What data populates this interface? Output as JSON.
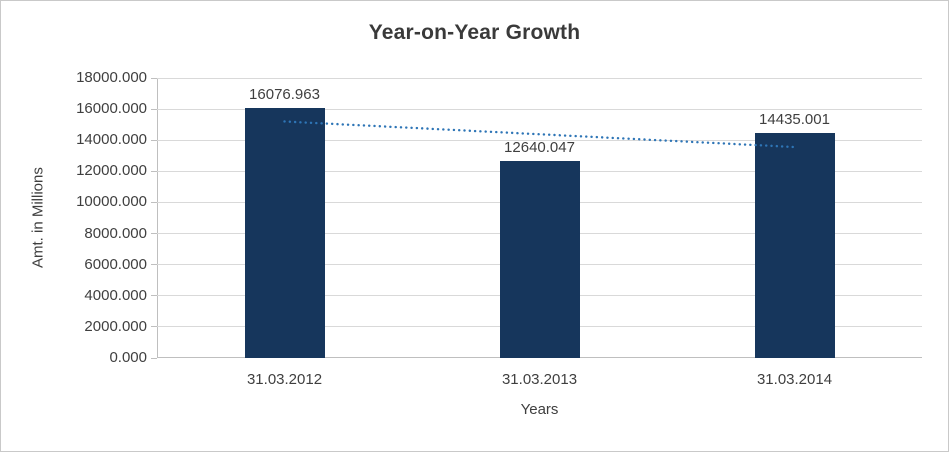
{
  "chart_data": {
    "type": "bar",
    "title": "Year-on-Year Growth",
    "xlabel": "Years",
    "ylabel": "Amt. in Millions",
    "categories": [
      "31.03.2012",
      "31.03.2013",
      "31.03.2014"
    ],
    "values": [
      16076.963,
      12640.047,
      14435.001
    ],
    "data_labels": [
      "16076.963",
      "12640.047",
      "14435.001"
    ],
    "ylim": [
      0,
      18000
    ],
    "y_tick_step": 2000,
    "y_tick_labels": [
      "0.000",
      "2000.000",
      "4000.000",
      "6000.000",
      "8000.000",
      "10000.000",
      "12000.000",
      "14000.000",
      "16000.000",
      "18000.000"
    ],
    "grid": true,
    "legend": "none",
    "trendline": {
      "style": "dotted",
      "color": "#2e75b6",
      "values": [
        15205.318,
        14384.337,
        13563.356
      ]
    },
    "colors": {
      "bar": "#16365c",
      "gridline": "#d9d9d9",
      "axis": "#bfbfbf",
      "text": "#3f3f3f"
    }
  }
}
